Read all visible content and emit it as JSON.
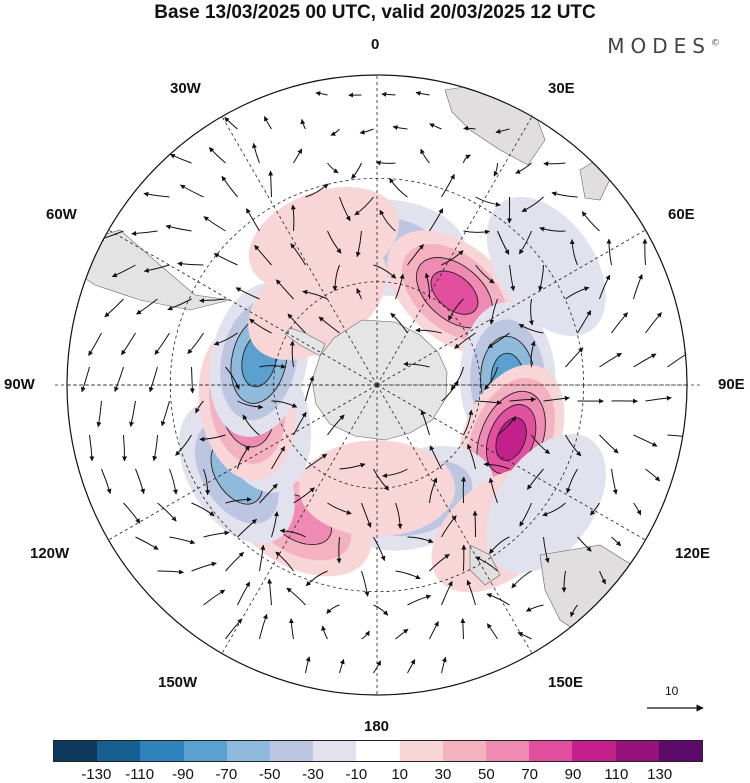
{
  "title": "Base 13/03/2025 00 UTC, valid 20/03/2025 12 UTC",
  "brand": "MODES",
  "brand_mark": "©",
  "longitude_labels": {
    "lon_0": "0",
    "lon_30e": "30E",
    "lon_60e": "60E",
    "lon_90e": "90E",
    "lon_120e": "120E",
    "lon_150e": "150E",
    "lon_180": "180",
    "lon_150w": "150W",
    "lon_120w": "120W",
    "lon_90w": "90W",
    "lon_60w": "60W",
    "lon_30w": "30W"
  },
  "vector_scale_label": "10",
  "colorbar": {
    "colors": [
      "#0d3a5c",
      "#175f91",
      "#2f83bd",
      "#5aa1cf",
      "#8fbadc",
      "#bdc6e0",
      "#e2e2ef",
      "#ffffff",
      "#f8d6d8",
      "#f4b2c0",
      "#ef8ab3",
      "#e14f9e",
      "#c4208b",
      "#95127a",
      "#5c0a6a"
    ],
    "tick_labels": [
      "-130",
      "-110",
      "-90",
      "-70",
      "-50",
      "-30",
      "-10",
      "10",
      "30",
      "50",
      "70",
      "90",
      "110",
      "130"
    ]
  },
  "anomalies": [
    {
      "lon": 5,
      "lat": -50,
      "value": -45
    },
    {
      "lon": 40,
      "lat": -55,
      "value": 75
    },
    {
      "lon": 88,
      "lat": -52,
      "value": -80
    },
    {
      "lon": 112,
      "lat": -48,
      "value": 95
    },
    {
      "lon": 160,
      "lat": -55,
      "value": -65
    },
    {
      "lon": 140,
      "lat": -35,
      "value": 30
    },
    {
      "lon": -150,
      "lat": -45,
      "value": 55
    },
    {
      "lon": -122,
      "lat": -42,
      "value": -60
    },
    {
      "lon": -105,
      "lat": -55,
      "value": -40
    },
    {
      "lon": -98,
      "lat": -52,
      "value": 75
    },
    {
      "lon": -78,
      "lat": -55,
      "value": -75
    },
    {
      "lon": -35,
      "lat": -60,
      "value": 25
    },
    {
      "lon": -20,
      "lat": -45,
      "value": 25
    },
    {
      "lon": 55,
      "lat": -30,
      "value": -25
    },
    {
      "lon": 125,
      "lat": -30,
      "value": -25
    },
    {
      "lon": 180,
      "lat": -60,
      "value": 20
    }
  ]
}
